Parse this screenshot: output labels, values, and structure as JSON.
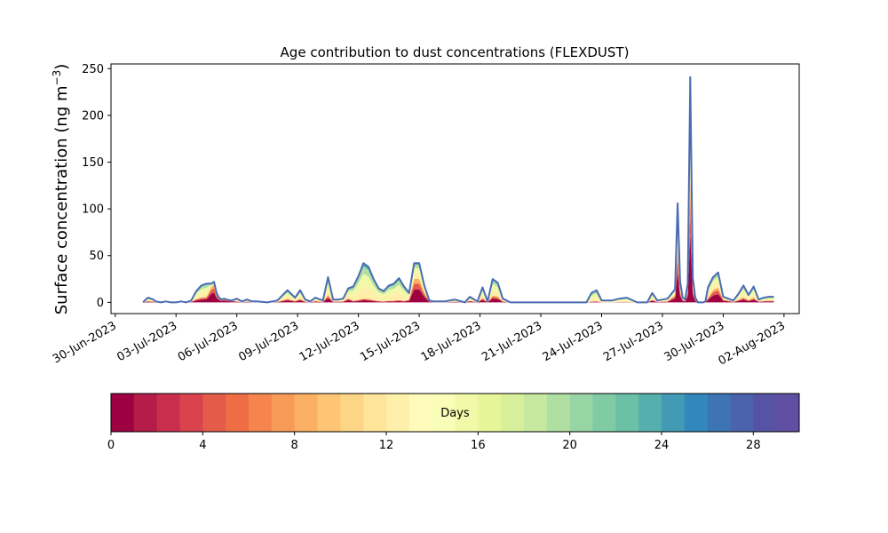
{
  "chart_data": {
    "type": "area",
    "title": "Age contribution to dust concentrations (FLEXDUST)",
    "ylabel_main": "Surface concentration (ng m",
    "ylabel_sup": "−3",
    "ylabel_close": ")",
    "xlabel": "",
    "ylim": [
      -12,
      255
    ],
    "yticks": [
      0,
      50,
      100,
      150,
      200,
      250
    ],
    "xlim": [
      "2023-06-29T19:00",
      "2023-08-02T18:00"
    ],
    "xticks": [
      "30-Jun-2023",
      "03-Jul-2023",
      "06-Jul-2023",
      "09-Jul-2023",
      "12-Jul-2023",
      "15-Jul-2023",
      "18-Jul-2023",
      "21-Jul-2023",
      "24-Jul-2023",
      "27-Jul-2023",
      "30-Jul-2023",
      "02-Aug-2023"
    ],
    "grid": false,
    "series_note": "stacked by age in days (0–30), colored by age; total shown by top line",
    "total": {
      "x": [
        "2023-07-01T09:00",
        "2023-07-01T12:00",
        "2023-07-01T15:00",
        "2023-07-01T18:00",
        "2023-07-01T21:00",
        "2023-07-02T00:00",
        "2023-07-02T06:00",
        "2023-07-02T12:00",
        "2023-07-02T18:00",
        "2023-07-03T00:00",
        "2023-07-03T06:00",
        "2023-07-03T12:00",
        "2023-07-03T18:00",
        "2023-07-04T00:00",
        "2023-07-04T06:00",
        "2023-07-04T12:00",
        "2023-07-04T18:00",
        "2023-07-04T21:00",
        "2023-07-05T00:00",
        "2023-07-05T03:00",
        "2023-07-05T06:00",
        "2023-07-05T09:00",
        "2023-07-05T12:00",
        "2023-07-05T18:00",
        "2023-07-06T00:00",
        "2023-07-06T06:00",
        "2023-07-06T12:00",
        "2023-07-06T18:00",
        "2023-07-07T00:00",
        "2023-07-07T12:00",
        "2023-07-08T00:00",
        "2023-07-08T12:00",
        "2023-07-08T21:00",
        "2023-07-09T03:00",
        "2023-07-09T09:00",
        "2023-07-09T15:00",
        "2023-07-09T21:00",
        "2023-07-10T06:00",
        "2023-07-10T12:00",
        "2023-07-10T18:00",
        "2023-07-11T00:00",
        "2023-07-11T06:00",
        "2023-07-11T12:00",
        "2023-07-11T18:00",
        "2023-07-12T00:00",
        "2023-07-12T06:00",
        "2023-07-12T12:00",
        "2023-07-12T18:00",
        "2023-07-13T00:00",
        "2023-07-13T06:00",
        "2023-07-13T12:00",
        "2023-07-13T18:00",
        "2023-07-14T00:00",
        "2023-07-14T06:00",
        "2023-07-14T12:00",
        "2023-07-14T18:00",
        "2023-07-15T00:00",
        "2023-07-15T06:00",
        "2023-07-15T12:00",
        "2023-07-15T18:00",
        "2023-07-16T06:00",
        "2023-07-16T18:00",
        "2023-07-17T06:00",
        "2023-07-17T12:00",
        "2023-07-17T21:00",
        "2023-07-18T03:00",
        "2023-07-18T09:00",
        "2023-07-18T15:00",
        "2023-07-18T21:00",
        "2023-07-19T03:00",
        "2023-07-19T12:00",
        "2023-07-20T00:00",
        "2023-07-20T12:00",
        "2023-07-21T00:00",
        "2023-07-21T12:00",
        "2023-07-22T00:00",
        "2023-07-22T12:00",
        "2023-07-23T00:00",
        "2023-07-23T06:00",
        "2023-07-23T12:00",
        "2023-07-23T18:00",
        "2023-07-24T00:00",
        "2023-07-24T12:00",
        "2023-07-24T21:00",
        "2023-07-25T06:00",
        "2023-07-25T18:00",
        "2023-07-26T06:00",
        "2023-07-26T12:00",
        "2023-07-26T18:00",
        "2023-07-27T06:00",
        "2023-07-27T15:00",
        "2023-07-27T18:00",
        "2023-07-27T21:00",
        "2023-07-28T00:00",
        "2023-07-28T03:00",
        "2023-07-28T06:00",
        "2023-07-28T09:00",
        "2023-07-28T12:00",
        "2023-07-28T15:00",
        "2023-07-28T18:00",
        "2023-07-28T21:00",
        "2023-07-29T00:00",
        "2023-07-29T03:00",
        "2023-07-29T06:00",
        "2023-07-29T12:00",
        "2023-07-29T18:00",
        "2023-07-30T00:00",
        "2023-07-30T06:00",
        "2023-07-30T12:00",
        "2023-07-30T18:00",
        "2023-07-31T00:00",
        "2023-07-31T06:00",
        "2023-07-31T12:00",
        "2023-07-31T18:00",
        "2023-08-01T00:00",
        "2023-08-01T06:00",
        "2023-08-01T12:00"
      ],
      "y": [
        0,
        3,
        5,
        4,
        3,
        1,
        0,
        1,
        0,
        0,
        1,
        0,
        2,
        12,
        18,
        20,
        20,
        22,
        10,
        5,
        3,
        4,
        3,
        2,
        4,
        1,
        3,
        1,
        1,
        0,
        2,
        13,
        5,
        13,
        3,
        1,
        5,
        2,
        27,
        3,
        3,
        4,
        15,
        17,
        28,
        42,
        38,
        25,
        15,
        12,
        18,
        20,
        26,
        17,
        10,
        42,
        42,
        18,
        2,
        1,
        1,
        3,
        0,
        6,
        1,
        16,
        1,
        25,
        21,
        4,
        0,
        0,
        0,
        0,
        0,
        0,
        0,
        0,
        0,
        10,
        13,
        2,
        2,
        4,
        5,
        0,
        0,
        10,
        2,
        4,
        14,
        106,
        22,
        5,
        3,
        20,
        241,
        26,
        5,
        0,
        0,
        0,
        1,
        16,
        27,
        32,
        6,
        4,
        2,
        9,
        18,
        8,
        17,
        3,
        5,
        6,
        6
      ],
      "age_split": "young fraction (0–8 d, red tones) dominant in spikes near 05-Jul, 14–15 Jul and 27–28 Jul; older (12–20 d, yellow-green) dominant around 12–14 Jul"
    }
  },
  "colorbar": {
    "label": "Days",
    "ticks": [
      "0",
      "4",
      "8",
      "12",
      "16",
      "20",
      "24",
      "28"
    ],
    "range": [
      0,
      30
    ],
    "bins": 30,
    "colors": [
      "#9e0142",
      "#b41d47",
      "#c92f4c",
      "#d8434e",
      "#e45b4a",
      "#ef6d45",
      "#f5844d",
      "#f99b58",
      "#fcb063",
      "#fdc574",
      "#fdd586",
      "#fee59a",
      "#fef0aa",
      "#fffbba",
      "#fafdb7",
      "#f1f9a8",
      "#e6f598",
      "#d7ef9b",
      "#c6e89f",
      "#b0dfa2",
      "#98d5a4",
      "#80cba4",
      "#6bc0a5",
      "#55b0ad",
      "#429bb4",
      "#3288bd",
      "#3d74b3",
      "#4a63ab",
      "#5753a4",
      "#5e4fa2"
    ]
  },
  "colors": {
    "total_line": "#4a6cb3"
  }
}
